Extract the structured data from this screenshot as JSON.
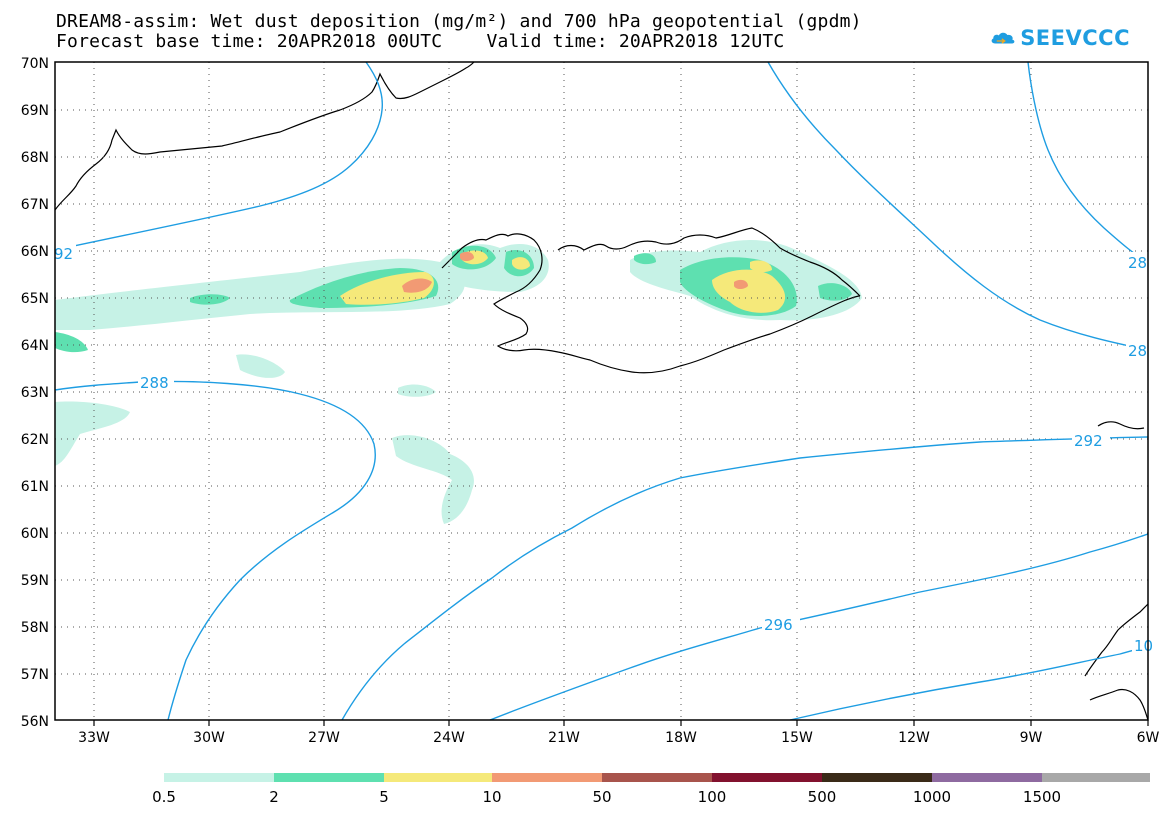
{
  "title": {
    "line1": "DREAM8-assim: Wet dust deposition (mg/m²) and 700 hPa geopotential (gpdm)",
    "line2": "Forecast base time: 20APR2018 00UTC    Valid time: 20APR2018 12UTC"
  },
  "logo": {
    "text": "SEEVCCC",
    "color": "#1f9de0"
  },
  "axes": {
    "lat_labels": [
      "70N",
      "69N",
      "68N",
      "67N",
      "66N",
      "65N",
      "64N",
      "63N",
      "62N",
      "61N",
      "60N",
      "59N",
      "58N",
      "57N",
      "56N"
    ],
    "lon_labels": [
      "33W",
      "30W",
      "27W",
      "24W",
      "21W",
      "18W",
      "15W",
      "12W",
      "9W",
      "6W"
    ]
  },
  "contours": {
    "color": "#1e9de2",
    "labels": [
      "92",
      "288",
      "292",
      "296",
      "28",
      "28",
      "10"
    ]
  },
  "colorbar": {
    "ticks": [
      "0.5",
      "2",
      "5",
      "10",
      "50",
      "100",
      "500",
      "1000",
      "1500"
    ],
    "colors": [
      "#c6f2e6",
      "#5ee0b0",
      "#f5e97a",
      "#f29a74",
      "#a8544c",
      "#82112e",
      "#3a2a18",
      "#8e6aa0",
      "#a8a8a8"
    ]
  }
}
